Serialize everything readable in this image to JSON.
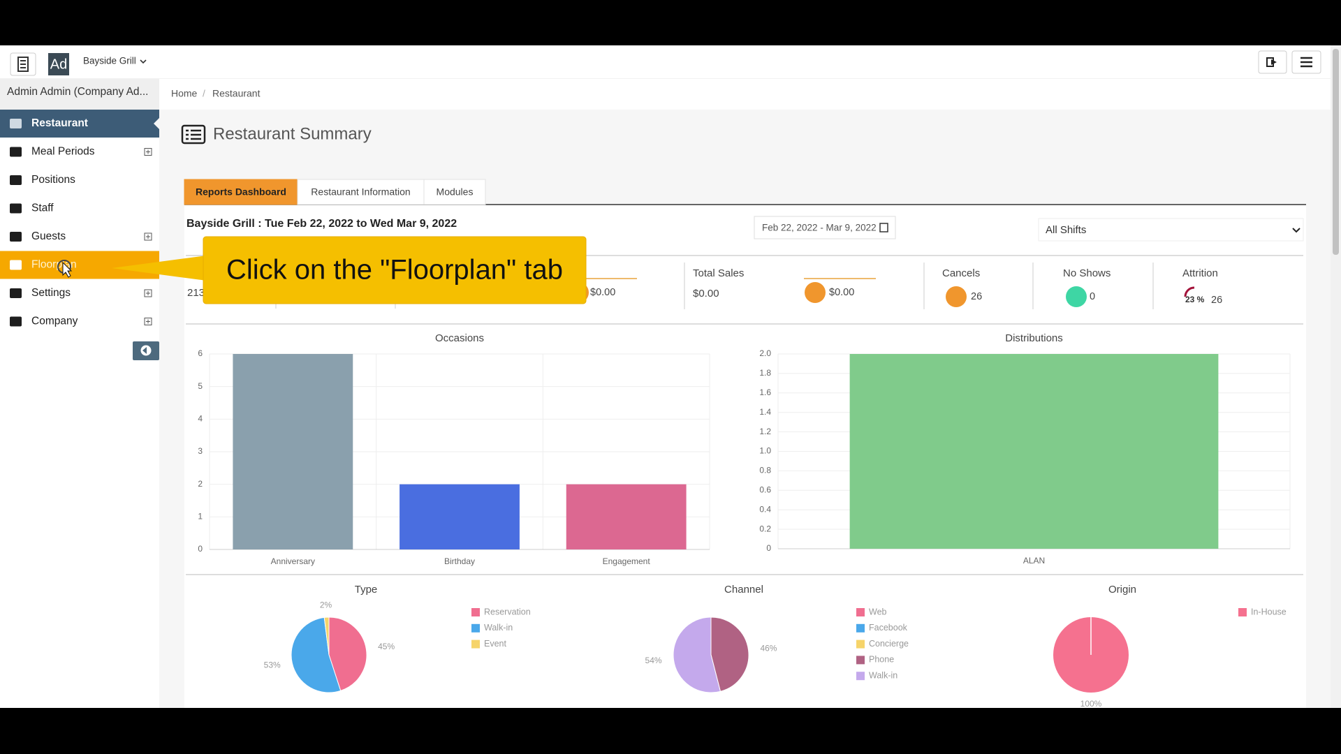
{
  "app": {
    "location": "Bayside Grill",
    "avatar": "Ad",
    "user": "Admin Admin (Company Ad..."
  },
  "nav": [
    {
      "label": "Restaurant",
      "active": true
    },
    {
      "label": "Meal Periods",
      "expandable": true
    },
    {
      "label": "Positions"
    },
    {
      "label": "Staff"
    },
    {
      "label": "Guests",
      "expandable": true
    },
    {
      "label": "Floorplan",
      "highlighted": true
    },
    {
      "label": "Settings",
      "expandable": true
    },
    {
      "label": "Company",
      "expandable": true
    }
  ],
  "breadcrumb": [
    "Home",
    "Restaurant"
  ],
  "page_title": "Restaurant Summary",
  "tabs": [
    {
      "label": "Reports Dashboard",
      "active": true
    },
    {
      "label": "Restaurant Information"
    },
    {
      "label": "Modules"
    }
  ],
  "report": {
    "heading": "Bayside Grill : Tue Feb 22, 2022 to Wed Mar 9, 2022",
    "date_range": "Feb 22, 2022 - Mar 9, 2022",
    "shift": "All Shifts"
  },
  "stats": {
    "first_value": "213",
    "second_trend": "$0.00",
    "total_sales": {
      "label": "Total Sales",
      "value": "$0.00",
      "trend": "$0.00"
    },
    "cancels": {
      "label": "Cancels",
      "value": "26"
    },
    "no_shows": {
      "label": "No Shows",
      "value": "0"
    },
    "attrition": {
      "label": "Attrition",
      "percent": "23 %",
      "value": "26"
    }
  },
  "callout": "Click on the \"Floorplan\" tab",
  "charts": [
    {
      "type": "bar",
      "title": "Occasions",
      "categories": [
        "Anniversary",
        "Birthday",
        "Engagement"
      ],
      "values": [
        6,
        2,
        2
      ],
      "colors": [
        "#8aa0ad",
        "#4a6ee0",
        "#dc6891"
      ],
      "ylim": [
        0,
        6
      ],
      "yticks": [
        0,
        1,
        2,
        3,
        4,
        5,
        6
      ],
      "grid": true
    },
    {
      "type": "bar",
      "title": "Distributions",
      "categories": [
        "ALAN"
      ],
      "values": [
        2
      ],
      "colors": [
        "#80cb8b"
      ],
      "ylim": [
        0,
        2
      ],
      "yticks": [
        0,
        0.2,
        0.4,
        0.6,
        0.8,
        {
          "value": 1,
          "label": "1.0"
        },
        1.2,
        1.4,
        1.6,
        1.8,
        {
          "value": 2,
          "label": "2.0"
        }
      ],
      "grid": true
    },
    {
      "type": "pie",
      "title": "Type",
      "categories": [
        "Reservation",
        "Walk-in",
        "Event"
      ],
      "values": [
        45,
        53,
        2
      ],
      "value_labels": [
        "45%",
        "53%",
        "2%"
      ],
      "colors": [
        "#f06e90",
        "#4aa8ea",
        "#f6d46a"
      ]
    },
    {
      "type": "pie",
      "title": "Channel",
      "categories": [
        "Web",
        "Facebook",
        "Concierge",
        "Phone",
        "Walk-in"
      ],
      "values": [
        0,
        0,
        0,
        46,
        54
      ],
      "value_labels": [
        null,
        null,
        null,
        "46%",
        "54%"
      ],
      "colors": [
        "#f06e90",
        "#4aa8ea",
        "#f6d46a",
        "#b06283",
        "#c4a9ec"
      ]
    },
    {
      "type": "pie",
      "title": "Origin",
      "categories": [
        "In-House"
      ],
      "values": [
        100
      ],
      "value_labels": [
        "100%"
      ],
      "colors": [
        "#f5718f"
      ]
    }
  ]
}
